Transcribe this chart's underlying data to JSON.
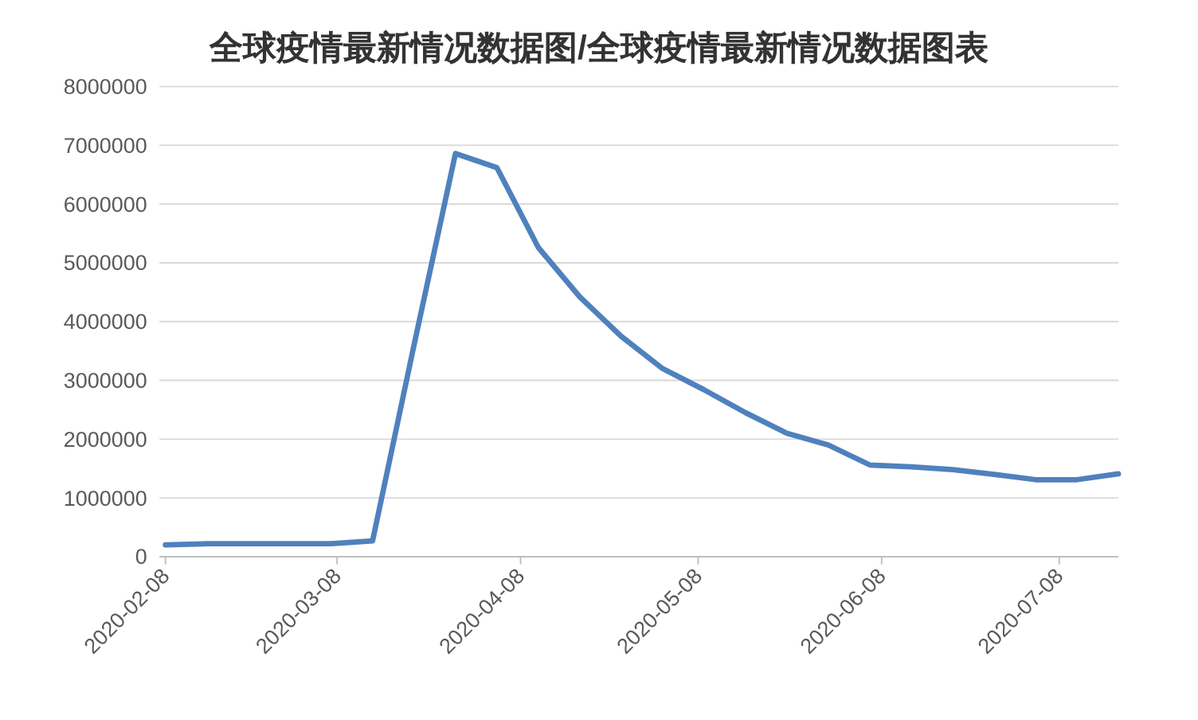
{
  "chart_data": {
    "type": "line",
    "title": "全球疫情最新情况数据图/全球疫情最新情况数据图表",
    "x": [
      "2020-02-08",
      "2020-02-15",
      "2020-02-22",
      "2020-02-29",
      "2020-03-07",
      "2020-03-14",
      "2020-03-21",
      "2020-03-28",
      "2020-04-04",
      "2020-04-11",
      "2020-04-18",
      "2020-04-25",
      "2020-05-02",
      "2020-05-09",
      "2020-05-16",
      "2020-05-23",
      "2020-05-30",
      "2020-06-06",
      "2020-06-13",
      "2020-06-20",
      "2020-06-27",
      "2020-07-04",
      "2020-07-11",
      "2020-07-18"
    ],
    "series": [
      {
        "color": "#4f81bd",
        "values": [
          200000,
          220000,
          220000,
          220000,
          220000,
          270000,
          3600000,
          6860000,
          6620000,
          5260000,
          4420000,
          3750000,
          3200000,
          2840000,
          2450000,
          2100000,
          1900000,
          1560000,
          1530000,
          1480000,
          1400000,
          1310000,
          1310000,
          1410000
        ]
      }
    ],
    "xlim": [
      "2020-02-07",
      "2020-07-18"
    ],
    "xticks": [
      "2020-02-08",
      "2020-03-08",
      "2020-04-08",
      "2020-05-08",
      "2020-06-08",
      "2020-07-08"
    ],
    "ylim": [
      0,
      8000000
    ],
    "yticks": [
      0,
      1000000,
      2000000,
      3000000,
      4000000,
      5000000,
      6000000,
      7000000,
      8000000
    ],
    "grid": "y",
    "marker": "none",
    "line_style": "solid"
  }
}
